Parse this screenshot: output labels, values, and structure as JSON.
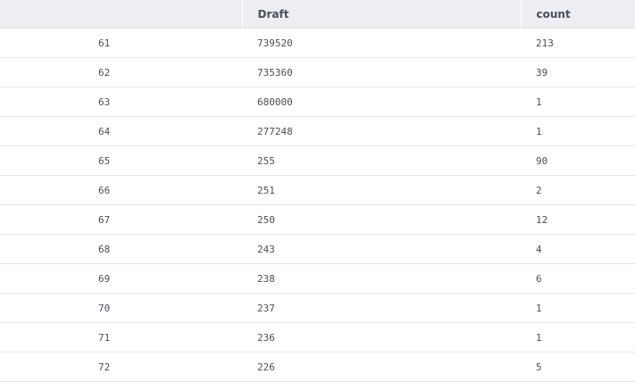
{
  "table": {
    "columns": [
      "",
      "Draft",
      "count"
    ],
    "rows": [
      {
        "index": "61",
        "draft": "739520",
        "count": "213"
      },
      {
        "index": "62",
        "draft": "735360",
        "count": "39"
      },
      {
        "index": "63",
        "draft": "680000",
        "count": "1"
      },
      {
        "index": "64",
        "draft": "277248",
        "count": "1"
      },
      {
        "index": "65",
        "draft": "255",
        "count": "90"
      },
      {
        "index": "66",
        "draft": "251",
        "count": "2"
      },
      {
        "index": "67",
        "draft": "250",
        "count": "12"
      },
      {
        "index": "68",
        "draft": "243",
        "count": "4"
      },
      {
        "index": "69",
        "draft": "238",
        "count": "6"
      },
      {
        "index": "70",
        "draft": "237",
        "count": "1"
      },
      {
        "index": "71",
        "draft": "236",
        "count": "1"
      },
      {
        "index": "72",
        "draft": "226",
        "count": "5"
      }
    ]
  }
}
